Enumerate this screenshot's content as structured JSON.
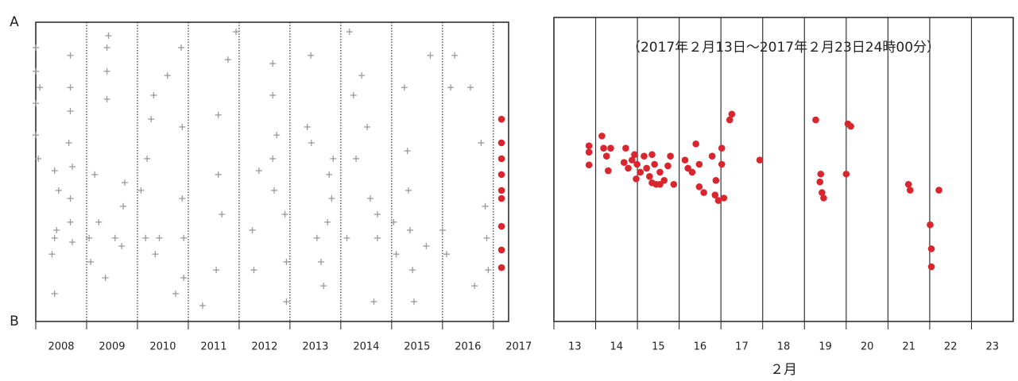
{
  "chart_data": [
    {
      "type": "scatter",
      "xlim": [
        2008,
        2017.3
      ],
      "xticks": [
        2008,
        2009,
        2010,
        2011,
        2012,
        2013,
        2014,
        2015,
        2016,
        2017
      ],
      "ylim": [
        0,
        100
      ],
      "yticks": [
        {
          "value": 0,
          "label": "B"
        },
        {
          "value": 100,
          "label": "A"
        }
      ],
      "grid": true,
      "grid_style": "dotted",
      "series": [
        {
          "color": "#9a9a9a",
          "marker": "cross",
          "x": [
            2008.0,
            2008.0,
            2008.0,
            2008.0,
            2008.05,
            2008.08,
            2008.37,
            2008.37,
            2008.32,
            2008.41,
            2008.37,
            2008.45,
            2008.68,
            2008.68,
            2008.68,
            2008.72,
            2008.68,
            2008.68,
            2008.72,
            2008.65,
            2009.05,
            2009.08,
            2009.16,
            2009.24,
            2009.4,
            2009.4,
            2009.4,
            2009.43,
            2009.37,
            2009.56,
            2009.72,
            2009.75,
            2009.69,
            2010.07,
            2010.16,
            2010.19,
            2010.27,
            2010.32,
            2010.35,
            2010.43,
            2010.59,
            2010.86,
            2010.88,
            2010.88,
            2010.91,
            2010.91,
            2010.75,
            2011.28,
            2011.55,
            2011.59,
            2011.59,
            2011.66,
            2011.78,
            2011.94,
            2012.26,
            2012.29,
            2012.39,
            2012.66,
            2012.66,
            2012.66,
            2012.69,
            2012.74,
            2012.9,
            2012.93,
            2012.93,
            2013.34,
            2013.41,
            2013.42,
            2013.53,
            2013.61,
            2013.66,
            2013.74,
            2013.77,
            2013.82,
            2013.85,
            2014.12,
            2014.17,
            2014.25,
            2014.3,
            2014.41,
            2014.52,
            2014.58,
            2014.72,
            2014.72,
            2014.65,
            2015.04,
            2015.09,
            2015.25,
            2015.31,
            2015.33,
            2015.36,
            2015.41,
            2015.44,
            2015.76,
            2015.68,
            2016.0,
            2016.08,
            2016.16,
            2016.24,
            2016.55,
            2016.63,
            2016.76,
            2016.84,
            2016.87,
            2016.9
          ],
          "y": [
            91.5,
            83.6,
            72.9,
            62.3,
            54.4,
            78.2,
            50.4,
            27.9,
            22.5,
            30.5,
            9.3,
            43.8,
            88.9,
            78.2,
            70.3,
            51.7,
            41.1,
            33.2,
            26.5,
            59.7,
            27.9,
            19.9,
            49.1,
            33.2,
            91.5,
            83.6,
            74.3,
            95.5,
            14.6,
            27.9,
            38.5,
            46.4,
            25.2,
            43.8,
            27.9,
            54.4,
            67.6,
            75.6,
            22.5,
            27.9,
            82.2,
            91.5,
            65.0,
            41.1,
            27.9,
            14.6,
            9.3,
            5.3,
            17.2,
            49.1,
            69.0,
            35.8,
            87.5,
            96.8,
            30.5,
            17.2,
            50.4,
            86.2,
            75.6,
            54.4,
            43.8,
            62.3,
            35.8,
            19.9,
            6.6,
            65.0,
            88.9,
            59.7,
            27.9,
            19.9,
            11.9,
            33.2,
            49.1,
            41.1,
            54.4,
            27.9,
            96.8,
            75.6,
            54.4,
            82.2,
            65.0,
            41.1,
            35.8,
            27.9,
            6.6,
            33.2,
            22.5,
            78.2,
            57.0,
            43.8,
            30.5,
            17.2,
            6.6,
            88.9,
            25.2,
            30.5,
            22.5,
            78.2,
            88.9,
            78.2,
            11.9,
            59.7,
            38.5,
            27.9,
            17.2
          ]
        },
        {
          "color": "#d9262e",
          "marker": "dot",
          "x": [
            2017.16,
            2017.16,
            2017.16,
            2017.16,
            2017.16,
            2017.16,
            2017.16,
            2017.16,
            2017.16
          ],
          "y": [
            67.6,
            59.7,
            54.4,
            49.1,
            43.8,
            41.1,
            31.8,
            23.9,
            18.0
          ]
        }
      ]
    },
    {
      "type": "scatter",
      "title": "（2017年２月13日～2017年２月23日24時00分）",
      "xlabel": "２月",
      "xlim": [
        13,
        24
      ],
      "xticks": [
        13,
        14,
        15,
        16,
        17,
        18,
        19,
        20,
        21,
        22,
        23
      ],
      "ylim": [
        0,
        100
      ],
      "grid": true,
      "grid_style": "solid",
      "series": [
        {
          "color": "#d9262e",
          "marker": "dot",
          "x": [
            13.84,
            13.84,
            13.84,
            14.15,
            14.19,
            14.26,
            14.3,
            14.36,
            14.72,
            14.68,
            14.78,
            14.87,
            14.93,
            14.99,
            15.07,
            14.97,
            15.16,
            15.22,
            15.29,
            15.35,
            15.41,
            15.45,
            15.54,
            15.64,
            15.73,
            15.79,
            15.87,
            15.54,
            15.35,
            16.14,
            16.21,
            16.31,
            16.4,
            16.48,
            16.48,
            16.59,
            16.79,
            16.88,
            16.86,
            16.94,
            17.02,
            17.02,
            17.07,
            17.21,
            17.26,
            17.93,
            19.27,
            19.39,
            19.37,
            19.42,
            19.46,
            20.0,
            20.04,
            20.11,
            21.49,
            21.53,
            22.22,
            22.01,
            22.04,
            22.04
          ],
          "y": [
            57.8,
            55.7,
            51.5,
            61.0,
            57.0,
            54.4,
            49.6,
            57.0,
            57.0,
            52.3,
            50.4,
            53.1,
            54.9,
            51.7,
            49.1,
            46.9,
            54.4,
            50.4,
            47.7,
            54.9,
            51.7,
            45.1,
            49.1,
            46.4,
            51.2,
            54.4,
            45.1,
            45.1,
            45.6,
            53.1,
            50.4,
            49.1,
            58.4,
            51.7,
            44.3,
            42.4,
            54.4,
            46.4,
            41.6,
            39.8,
            57.0,
            51.7,
            40.6,
            66.3,
            68.2,
            53.1,
            66.3,
            48.5,
            45.9,
            42.4,
            40.6,
            48.5,
            65.0,
            64.2,
            45.1,
            43.2,
            43.2,
            31.8,
            23.9,
            18.0
          ]
        }
      ]
    }
  ]
}
